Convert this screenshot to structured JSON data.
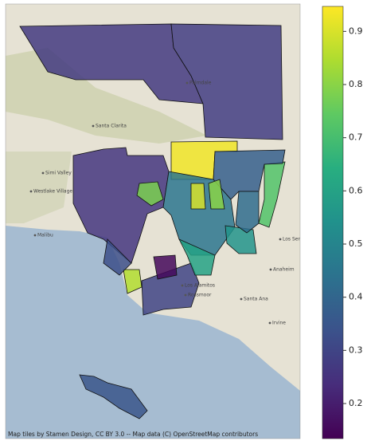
{
  "map": {
    "place_labels": [
      "Santa Clarita",
      "Simi Valley",
      "Westlake Village",
      "Malibu",
      "Palmdale",
      "Anaheim",
      "Los Alamitos",
      "Rossmoor",
      "Santa Ana",
      "Los Serranos",
      "Irvine"
    ],
    "attribution": "Map tiles by Stamen Design, CC BY 3.0 -- Map data (C) OpenStreetMap contributors",
    "regions": [
      {
        "value": 0.27
      },
      {
        "value": 0.28
      },
      {
        "value": 0.93
      },
      {
        "value": 0.26
      },
      {
        "value": 0.72
      },
      {
        "value": 0.45
      },
      {
        "value": 0.3
      },
      {
        "value": 0.35
      },
      {
        "value": 0.15
      },
      {
        "value": 0.78
      },
      {
        "value": 0.85
      },
      {
        "value": 0.55
      },
      {
        "value": 0.38
      },
      {
        "value": 0.9
      },
      {
        "value": 0.42
      },
      {
        "value": 0.6
      },
      {
        "value": 0.33
      },
      {
        "value": 0.8
      }
    ],
    "colorbar": {
      "clim": [
        0.134,
        0.947
      ],
      "ticks": [
        0.2,
        0.3,
        0.4,
        0.5,
        0.6,
        0.7,
        0.8,
        0.9
      ]
    }
  }
}
